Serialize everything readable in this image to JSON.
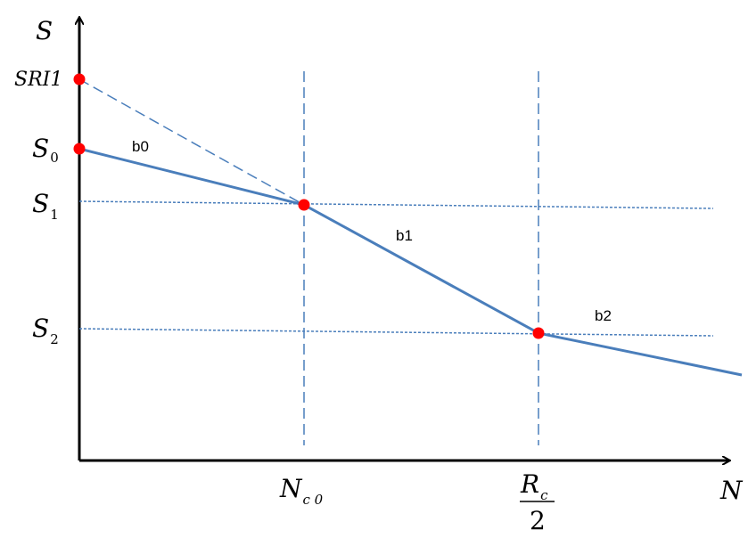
{
  "axes": {
    "y_label": "S",
    "x_label": "N"
  },
  "y_labels": {
    "sri1": "SRI1",
    "s0_base": "S",
    "s0_sub": "0",
    "s1_base": "S",
    "s1_sub": "1",
    "s2_base": "S",
    "s2_sub": "2"
  },
  "x_labels": {
    "nc0_base": "N",
    "nc0_sub": "c 0",
    "rc_base": "R",
    "rc_sub": "c",
    "rc_den": "2"
  },
  "segment_labels": {
    "b0": "b0",
    "b1": "b1",
    "b2": "b2"
  },
  "colors": {
    "line": "#4a7ebb",
    "point": "#ff0000",
    "axis": "#000000"
  }
}
